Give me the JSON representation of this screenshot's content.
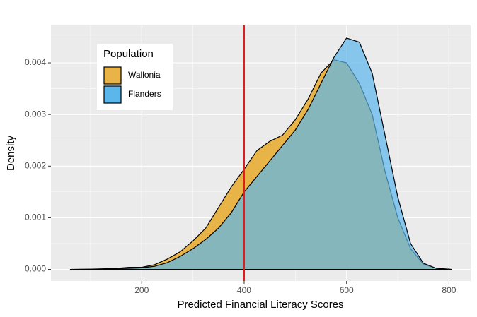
{
  "chart_data": {
    "type": "density",
    "x_label": "Predicted Financial Literacy Scores",
    "y_label": "Density",
    "x": [
      60,
      100,
      150,
      175,
      200,
      225,
      250,
      275,
      300,
      325,
      350,
      375,
      400,
      425,
      450,
      475,
      500,
      525,
      550,
      575,
      600,
      625,
      650,
      675,
      700,
      725,
      750,
      775,
      805
    ],
    "series": [
      {
        "name": "Wallonia",
        "color": "#e8b448",
        "opacity": 1,
        "values": [
          0,
          5e-06,
          2e-05,
          4e-05,
          4e-05,
          9e-05,
          0.0002,
          0.00034,
          0.00055,
          0.0008,
          0.0012,
          0.0016,
          0.00194,
          0.0023,
          0.00248,
          0.0026,
          0.0029,
          0.0033,
          0.0038,
          0.00406,
          0.004,
          0.0036,
          0.003,
          0.0019,
          0.001,
          0.0004,
          0.0001,
          2e-05,
          0
        ]
      },
      {
        "name": "Flanders",
        "color": "#5bb6ec",
        "opacity": 0.7,
        "values": [
          0,
          2e-06,
          1e-05,
          2e-05,
          3e-05,
          6e-05,
          0.00013,
          0.00025,
          0.0004,
          0.00058,
          0.0008,
          0.0011,
          0.0015,
          0.0018,
          0.0021,
          0.0024,
          0.0027,
          0.0031,
          0.0036,
          0.0041,
          0.00448,
          0.0044,
          0.0038,
          0.0026,
          0.0014,
          0.0005,
          0.00012,
          2e-05,
          0
        ]
      }
    ],
    "vline": {
      "value": 400,
      "color": "#e31a1c"
    },
    "legend_title": "Population",
    "legend_position": "top-left",
    "xlim": [
      22.75,
      842.25
    ],
    "xticks": [
      200,
      400,
      600,
      800
    ],
    "ylim": [
      -0.000225,
      0.004725
    ],
    "yticks": [
      {
        "value": 0,
        "label": "0.000"
      },
      {
        "value": 0.001,
        "label": "0.001"
      },
      {
        "value": 0.002,
        "label": "0.002"
      },
      {
        "value": 0.003,
        "label": "0.003"
      },
      {
        "value": 0.004,
        "label": "0.004"
      }
    ],
    "grid": true,
    "panel_color": "#ebebeb"
  }
}
